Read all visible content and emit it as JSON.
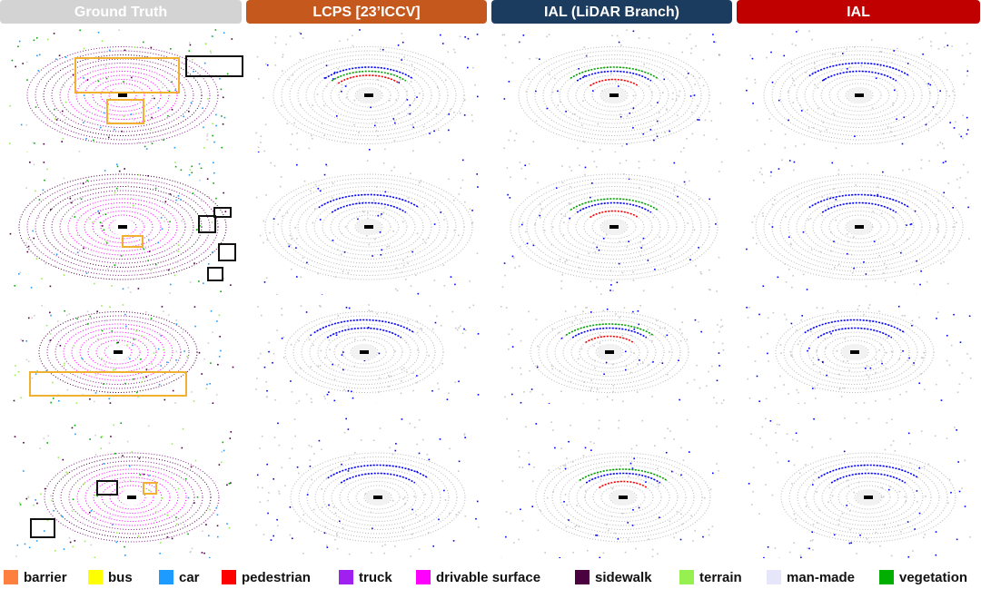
{
  "columns": [
    {
      "title": "Ground Truth",
      "color": "#d3d3d3"
    },
    {
      "title": "LCPS [23’ICCV]",
      "color": "#c5581c"
    },
    {
      "title": "IAL (LiDAR Branch)",
      "color": "#1b3c5e"
    },
    {
      "title": "IAL",
      "color": "#c00000"
    }
  ],
  "legend": [
    {
      "label": "barrier",
      "color": "#ff7f3f"
    },
    {
      "label": "bus",
      "color": "#ffff00"
    },
    {
      "label": "car",
      "color": "#1e9bff"
    },
    {
      "label": "pedestrian",
      "color": "#ff0000"
    },
    {
      "label": "truck",
      "color": "#a020f0"
    },
    {
      "label": "drivable surface",
      "color": "#ff00ff"
    },
    {
      "label": "sidewalk",
      "color": "#4b0040"
    },
    {
      "label": "terrain",
      "color": "#96f050"
    },
    {
      "label": "man-made",
      "color": "#e6e6fa"
    },
    {
      "label": "vegetation",
      "color": "#00af00"
    }
  ]
}
